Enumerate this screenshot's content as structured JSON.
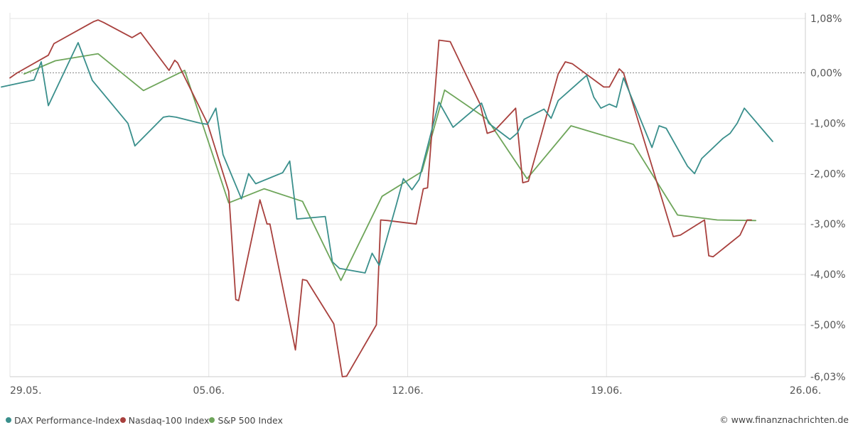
{
  "chart_data": {
    "type": "line",
    "ylabel_format": "percent",
    "ylim": [
      -6.03,
      1.08
    ],
    "y_ticks": [
      "1,08%",
      "0,00%",
      "-1,00%",
      "-2,00%",
      "-3,00%",
      "-4,00%",
      "-5,00%",
      "-6,03%"
    ],
    "y_tick_values": [
      1.08,
      0.0,
      -1.0,
      -2.0,
      -3.0,
      -4.0,
      -5.0,
      -6.03
    ],
    "x_ticks": [
      "29.05.",
      "05.06.",
      "12.06.",
      "19.06.",
      "26.06."
    ],
    "x_tick_values": [
      0,
      7,
      14,
      21,
      28
    ],
    "grid": true,
    "legend": "bottom-left",
    "series": [
      {
        "name": "DAX Performance-Index",
        "color": "#3a8f8c",
        "points": [
          [
            -0.3,
            -0.28
          ],
          [
            0.85,
            -0.14
          ],
          [
            1.1,
            0.22
          ],
          [
            1.35,
            -0.65
          ],
          [
            2.4,
            0.6
          ],
          [
            2.7,
            0.15
          ],
          [
            2.9,
            -0.15
          ],
          [
            4.15,
            -1.0
          ],
          [
            4.4,
            -1.45
          ],
          [
            5.4,
            -0.88
          ],
          [
            5.6,
            -0.86
          ],
          [
            5.85,
            -0.88
          ],
          [
            6.7,
            -1.0
          ],
          [
            6.95,
            -1.02
          ],
          [
            7.25,
            -0.7
          ],
          [
            7.5,
            -1.62
          ],
          [
            8.15,
            -2.5
          ],
          [
            8.4,
            -2.0
          ],
          [
            8.65,
            -2.2
          ],
          [
            9.6,
            -1.98
          ],
          [
            9.85,
            -1.75
          ],
          [
            10.1,
            -2.9
          ],
          [
            11.1,
            -2.85
          ],
          [
            11.35,
            -3.75
          ],
          [
            11.6,
            -3.88
          ],
          [
            12.5,
            -3.97
          ],
          [
            12.75,
            -3.58
          ],
          [
            13.0,
            -3.82
          ],
          [
            13.6,
            -2.62
          ],
          [
            13.85,
            -2.1
          ],
          [
            14.15,
            -2.32
          ],
          [
            14.4,
            -2.12
          ],
          [
            15.1,
            -0.58
          ],
          [
            15.6,
            -1.08
          ],
          [
            16.6,
            -0.6
          ],
          [
            16.85,
            -1.0
          ],
          [
            17.6,
            -1.32
          ],
          [
            17.85,
            -1.2
          ],
          [
            18.1,
            -0.92
          ],
          [
            18.8,
            -0.72
          ],
          [
            19.05,
            -0.9
          ],
          [
            19.3,
            -0.55
          ],
          [
            20.3,
            -0.05
          ],
          [
            20.55,
            -0.48
          ],
          [
            20.8,
            -0.7
          ],
          [
            21.1,
            -0.62
          ],
          [
            21.35,
            -0.68
          ],
          [
            21.6,
            -0.1
          ],
          [
            22.6,
            -1.48
          ],
          [
            22.85,
            -1.05
          ],
          [
            23.1,
            -1.1
          ],
          [
            23.85,
            -1.85
          ],
          [
            24.1,
            -2.0
          ],
          [
            24.35,
            -1.7
          ],
          [
            25.1,
            -1.3
          ],
          [
            25.35,
            -1.2
          ],
          [
            25.6,
            -1.0
          ],
          [
            25.85,
            -0.7
          ],
          [
            26.85,
            -1.36
          ]
        ]
      },
      {
        "name": "Nasdaq-100 Index",
        "color": "#a8403d",
        "points": [
          [
            0.0,
            -0.1
          ],
          [
            0.25,
            0.0
          ],
          [
            1.35,
            0.35
          ],
          [
            1.55,
            0.58
          ],
          [
            2.95,
            1.02
          ],
          [
            3.1,
            1.05
          ],
          [
            3.3,
            1.0
          ],
          [
            4.3,
            0.7
          ],
          [
            4.6,
            0.8
          ],
          [
            5.6,
            0.05
          ],
          [
            5.8,
            0.25
          ],
          [
            5.9,
            0.2
          ],
          [
            6.95,
            -1.0
          ],
          [
            7.7,
            -2.35
          ],
          [
            7.95,
            -4.5
          ],
          [
            8.05,
            -4.52
          ],
          [
            8.8,
            -2.52
          ],
          [
            9.05,
            -3.0
          ],
          [
            9.15,
            -3.0
          ],
          [
            10.05,
            -5.5
          ],
          [
            10.3,
            -4.1
          ],
          [
            10.45,
            -4.12
          ],
          [
            11.4,
            -4.98
          ],
          [
            11.7,
            -6.03
          ],
          [
            11.85,
            -6.02
          ],
          [
            12.9,
            -5.0
          ],
          [
            13.05,
            -2.92
          ],
          [
            13.3,
            -2.93
          ],
          [
            14.3,
            -3.0
          ],
          [
            14.55,
            -2.3
          ],
          [
            14.7,
            -2.28
          ],
          [
            15.1,
            0.65
          ],
          [
            15.5,
            0.62
          ],
          [
            16.55,
            -0.62
          ],
          [
            16.8,
            -1.2
          ],
          [
            17.05,
            -1.15
          ],
          [
            17.8,
            -0.7
          ],
          [
            18.05,
            -2.18
          ],
          [
            18.25,
            -2.15
          ],
          [
            19.3,
            -0.02
          ],
          [
            19.55,
            0.22
          ],
          [
            19.8,
            0.18
          ],
          [
            20.9,
            -0.28
          ],
          [
            21.1,
            -0.28
          ],
          [
            21.45,
            0.08
          ],
          [
            21.6,
            0.0
          ],
          [
            22.95,
            -2.5
          ],
          [
            23.35,
            -3.25
          ],
          [
            23.6,
            -3.22
          ],
          [
            24.45,
            -2.92
          ],
          [
            24.6,
            -3.63
          ],
          [
            24.75,
            -3.65
          ],
          [
            25.7,
            -3.22
          ],
          [
            25.95,
            -2.92
          ],
          [
            26.1,
            -2.92
          ]
        ]
      },
      {
        "name": "S&P 500 Index",
        "color": "#6ea55a",
        "points": [
          [
            0.5,
            -0.02
          ],
          [
            1.6,
            0.24
          ],
          [
            3.1,
            0.38
          ],
          [
            4.7,
            -0.35
          ],
          [
            6.15,
            0.05
          ],
          [
            7.7,
            -2.58
          ],
          [
            8.95,
            -2.3
          ],
          [
            10.3,
            -2.55
          ],
          [
            11.65,
            -4.12
          ],
          [
            13.1,
            -2.45
          ],
          [
            14.5,
            -1.96
          ],
          [
            15.3,
            -0.34
          ],
          [
            16.8,
            -0.92
          ],
          [
            18.2,
            -2.1
          ],
          [
            19.75,
            -1.05
          ],
          [
            21.95,
            -1.42
          ],
          [
            23.5,
            -2.82
          ],
          [
            24.9,
            -2.92
          ],
          [
            26.25,
            -2.93
          ]
        ]
      }
    ]
  },
  "credit": "© www.finanznachrichten.de"
}
